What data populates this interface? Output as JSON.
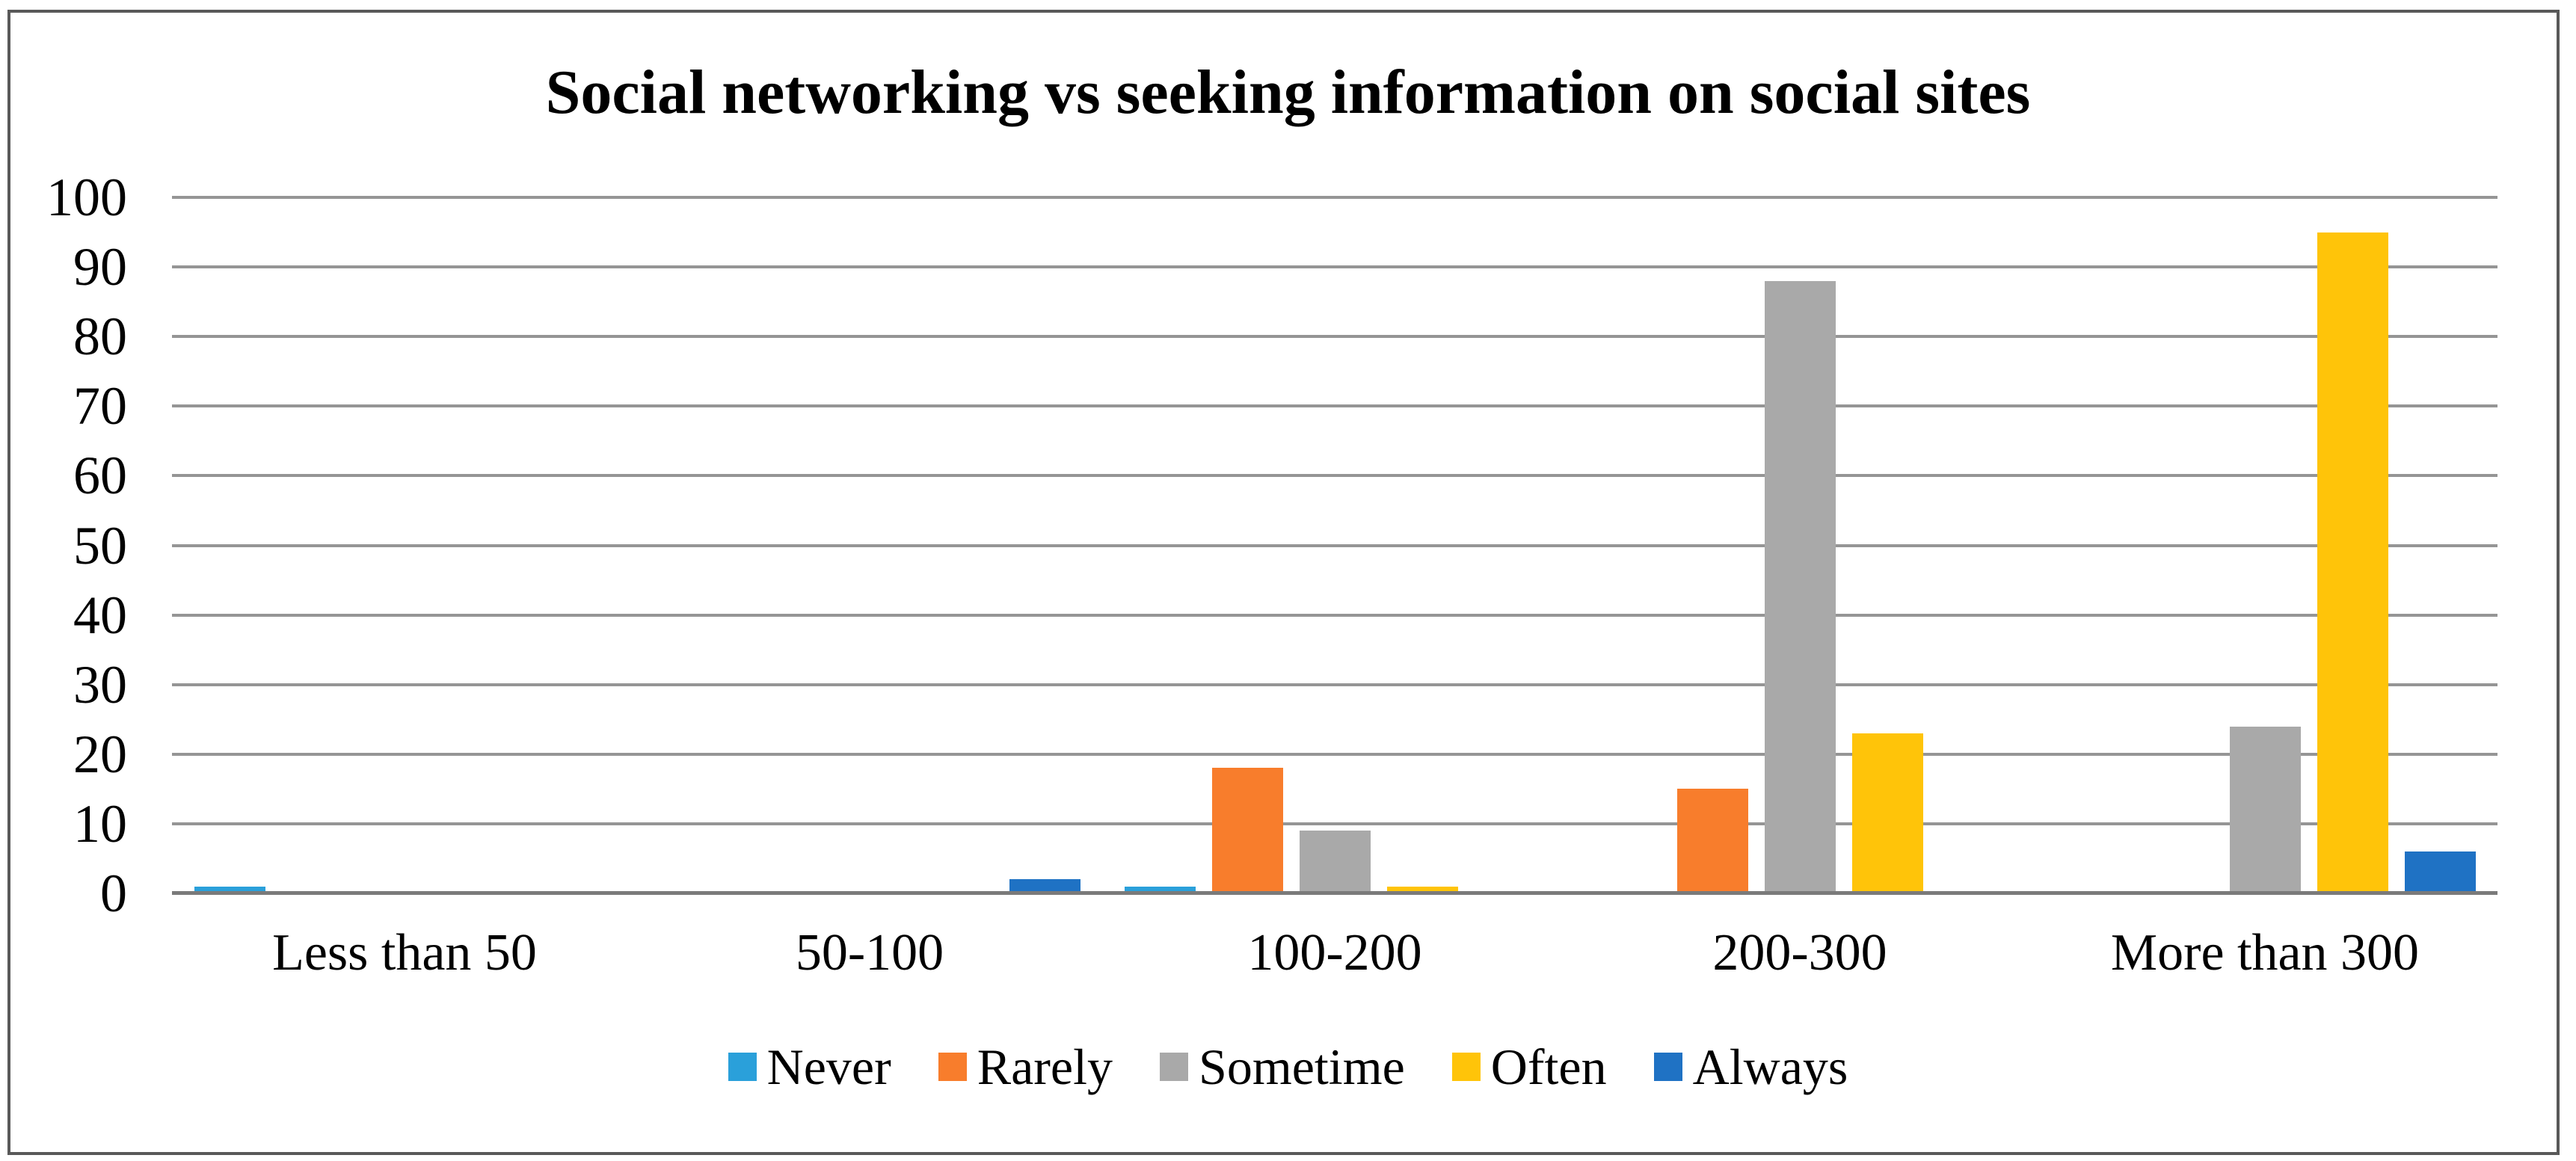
{
  "figure": {
    "title": "Social networking vs seeking information on social sites"
  },
  "chart_data": {
    "type": "bar",
    "title": "Social networking vs seeking information on social sites",
    "categories": [
      "Less than 50",
      "50-100",
      "100-200",
      "200-300",
      "More than 300"
    ],
    "series": [
      {
        "name": "Never",
        "color": "#2AA0DA",
        "values": [
          1,
          0,
          1,
          0,
          0
        ]
      },
      {
        "name": "Rarely",
        "color": "#F87D2C",
        "values": [
          0,
          0,
          18,
          15,
          0
        ]
      },
      {
        "name": "Sometime",
        "color": "#A9A9A9",
        "values": [
          0,
          0,
          9,
          88,
          24
        ]
      },
      {
        "name": "Often",
        "color": "#FFC409",
        "values": [
          0,
          0,
          1,
          23,
          95
        ]
      },
      {
        "name": "Always",
        "color": "#1F72C4",
        "values": [
          0,
          2,
          0,
          0,
          6
        ]
      }
    ],
    "xlabel": "",
    "ylabel": "",
    "ylim": [
      0,
      100
    ],
    "ytick_step": 10,
    "ytick_labels": [
      "0",
      "10",
      "20",
      "30",
      "40",
      "50",
      "60",
      "70",
      "80",
      "90",
      "100"
    ],
    "grid": true,
    "legend_position": "bottom",
    "colors_meta": {
      "gridline": "#959595",
      "axis_line": "#7a7a7a",
      "figure_border": "#595959",
      "background": "#ffffff",
      "text": "#000000"
    }
  }
}
